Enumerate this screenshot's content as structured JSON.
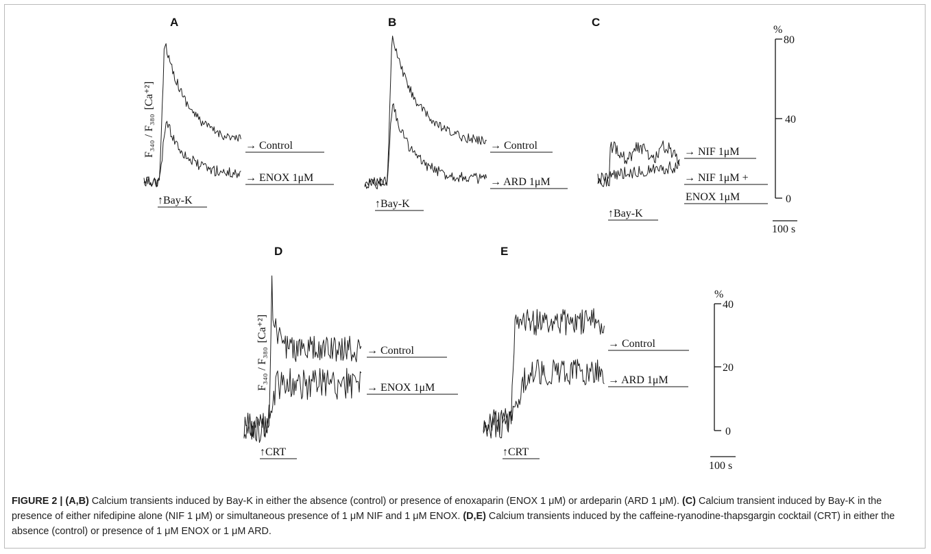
{
  "panels": {
    "A": {
      "letter": "A",
      "stimulus": "↑Bay-K",
      "upper_label": "→ Control",
      "lower_label": "→ ENOX 1μM"
    },
    "B": {
      "letter": "B",
      "stimulus": "↑Bay-K",
      "upper_label": "→ Control",
      "lower_label": "→ ARD 1μM"
    },
    "C": {
      "letter": "C",
      "stimulus": "↑Bay-K",
      "upper_label": "→ NIF 1μM",
      "lower_label_1": "→ NIF 1μM +",
      "lower_label_2": "ENOX 1μM"
    },
    "D": {
      "letter": "D",
      "stimulus": "↑CRT",
      "upper_label": "→ Control",
      "lower_label": "→ ENOX 1μM"
    },
    "E": {
      "letter": "E",
      "stimulus": "↑CRT",
      "upper_label": "→ Control",
      "lower_label": "→ ARD 1μM"
    }
  },
  "y_axis_labels": {
    "top_row": {
      "ratio": "F₃₄₀ / F₃₈₀",
      "ion": "[Ca⁺²]"
    },
    "bottom_row": {
      "ratio": "F₃₄₀ / F₃₈₀",
      "ion": "[Ca⁺²]"
    }
  },
  "scale_bars": {
    "top": {
      "unit": "%",
      "ticks": [
        "80",
        "40",
        "0"
      ],
      "time": "100 s"
    },
    "bottom": {
      "unit": "%",
      "ticks": [
        "40",
        "20",
        "0"
      ],
      "time": "100 s"
    }
  },
  "caption": {
    "fig_label": "FIGURE 2 |",
    "ab_label": "(A,B)",
    "ab_text": " Calcium transients induced by Bay-K in either the absence (control) or presence of enoxaparin (ENOX 1 μM) or ardeparin (ARD 1 μM). ",
    "c_label": "(C)",
    "c_text": " Calcium transient induced by Bay-K in the presence of either nifedipine alone (NIF 1 μM) or simultaneous presence of 1 μM NIF and 1 μM ENOX. ",
    "de_label": "(D,E)",
    "de_text": " Calcium transients induced by the caffeine-ryanodine-thapsgargin cocktail (CRT) in either the absence (control) or presence of 1 μM ENOX or 1 μM ARD."
  }
}
